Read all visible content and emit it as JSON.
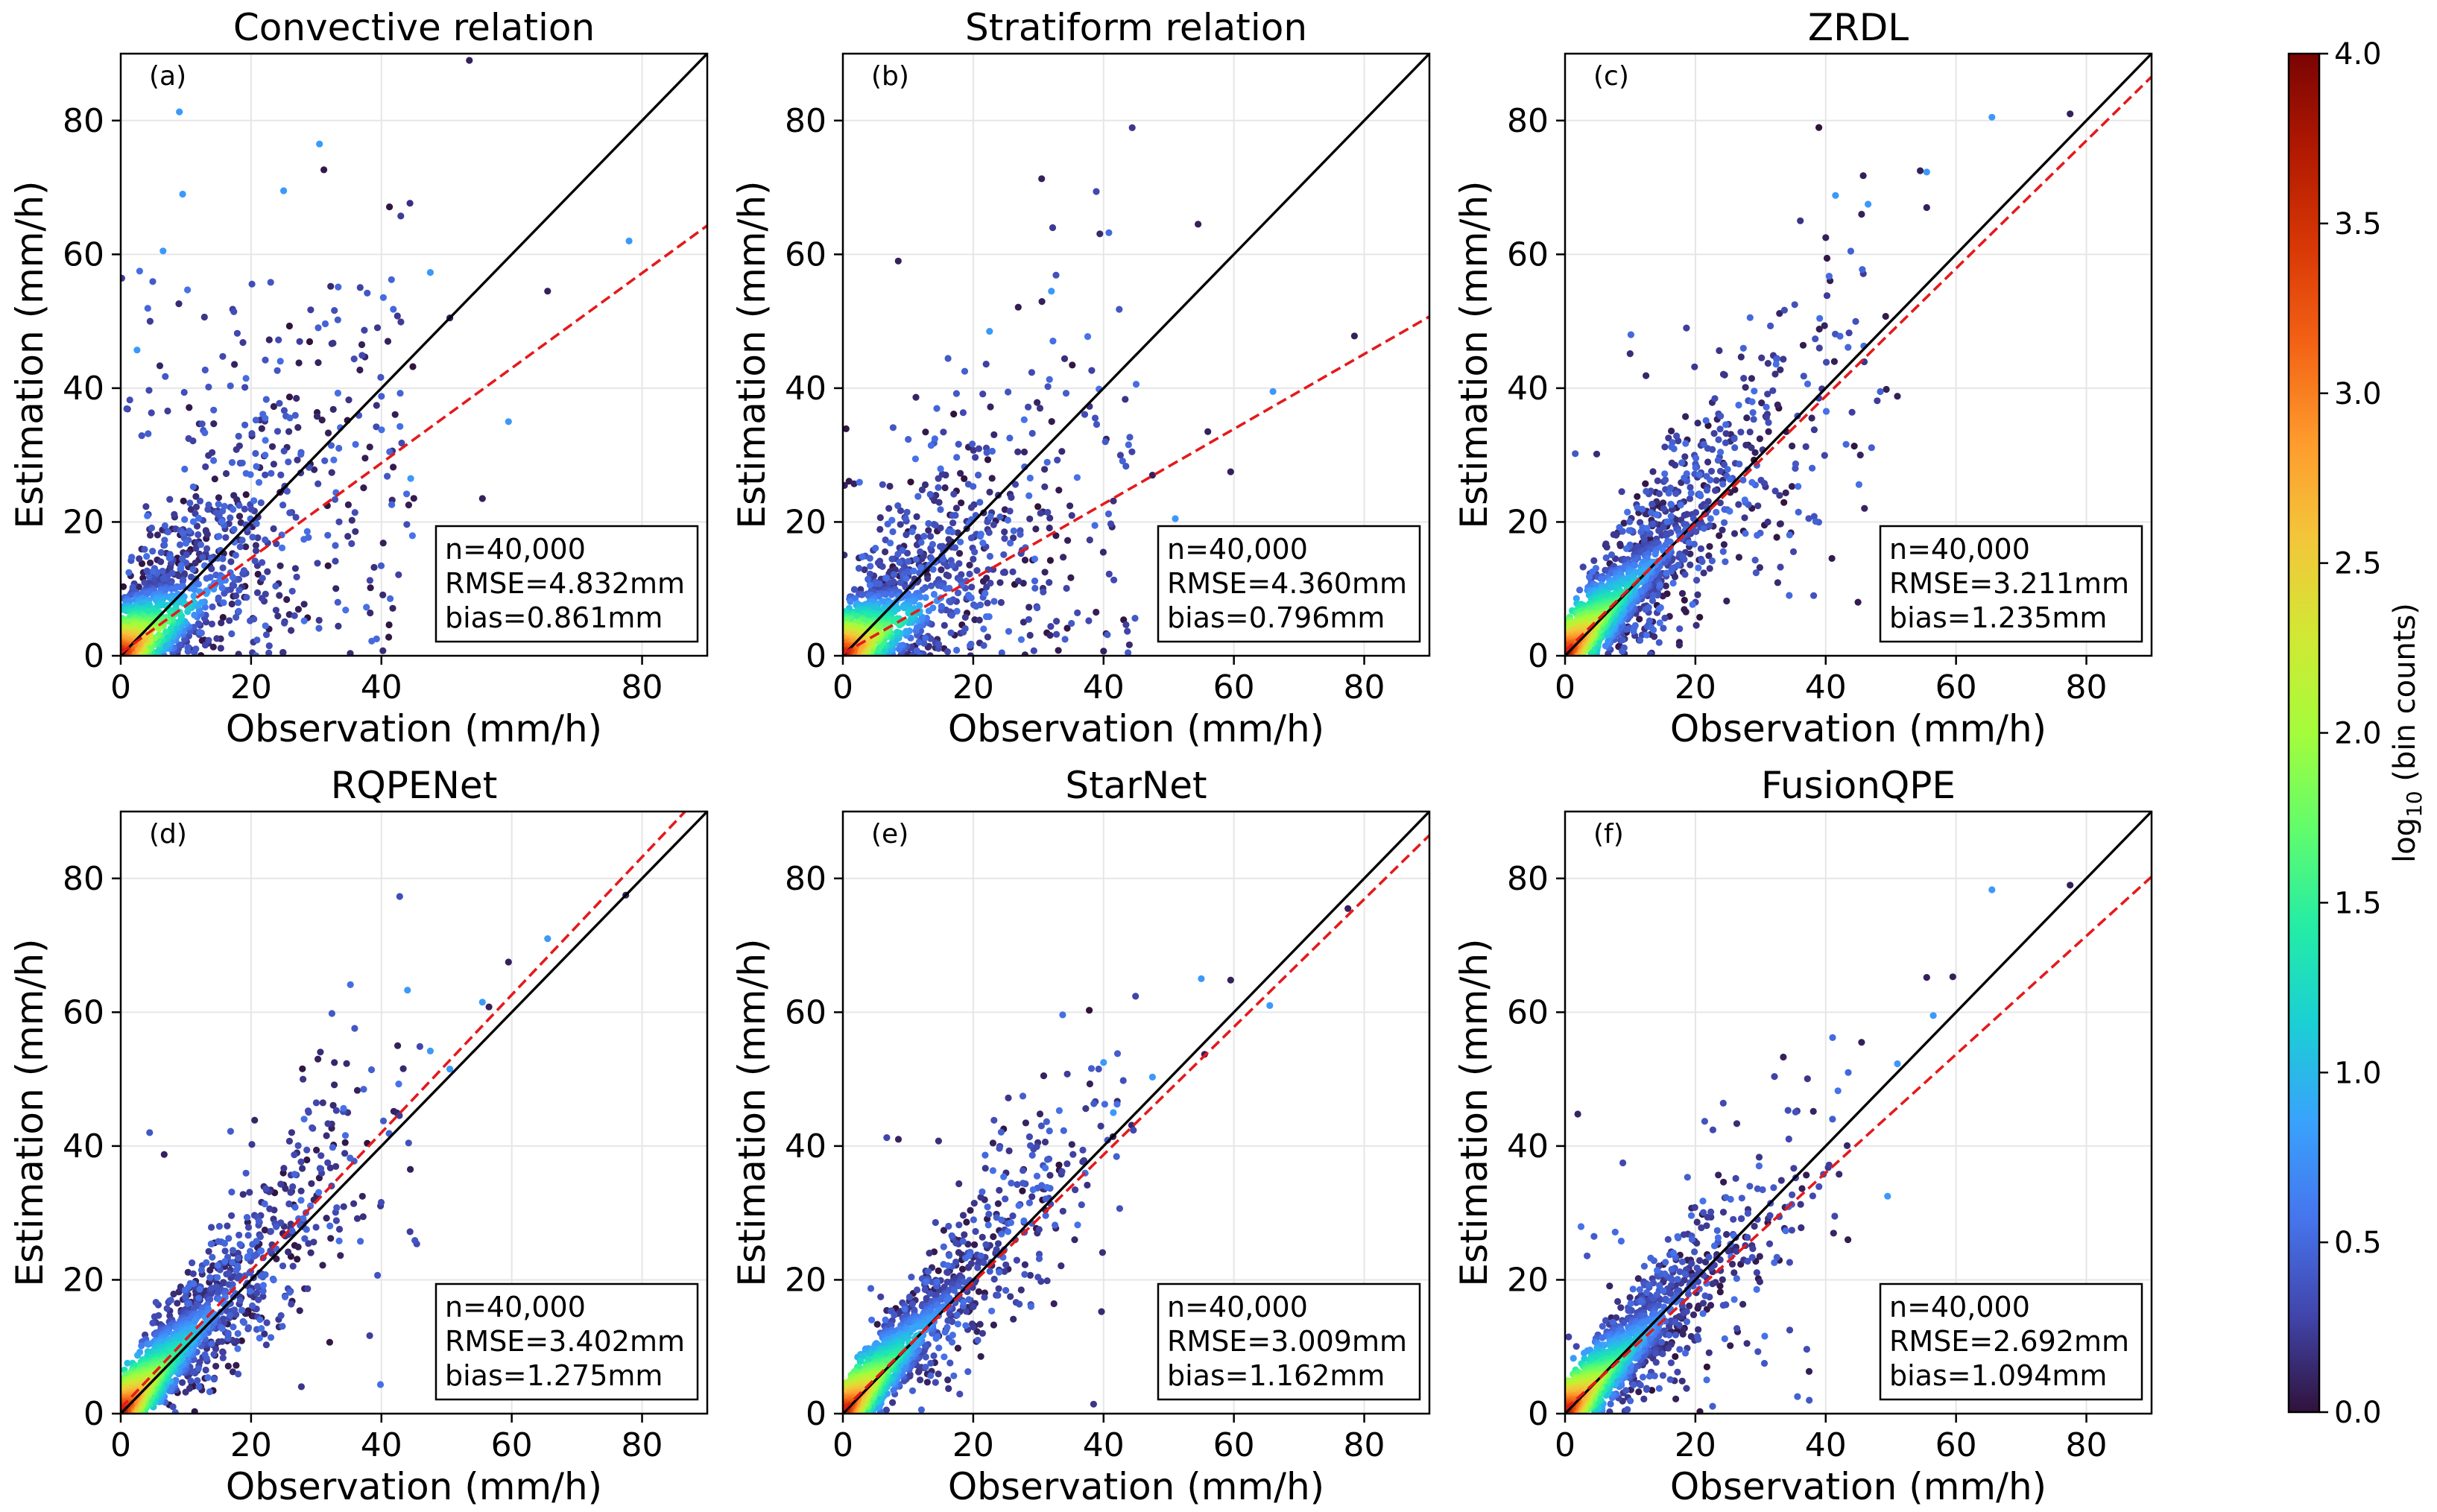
{
  "chart_data": [
    {
      "type": "scatter",
      "panel_label": "(a)",
      "title": "Convective relation",
      "xlabel": "Observation (mm/h)",
      "ylabel": "Estimation (mm/h)",
      "xlim": [
        0,
        90
      ],
      "ylim": [
        0,
        90
      ],
      "xticks": [
        0,
        20,
        40,
        80
      ],
      "yticks": [
        0,
        20,
        40,
        60,
        80
      ],
      "grid": true,
      "color_by": "log10 (bin counts)",
      "identity_line": {
        "color": "#000000",
        "style": "solid"
      },
      "fit_line": {
        "slope": 0.71,
        "intercept": 0.4,
        "color": "#e41a1c",
        "style": "dashed"
      },
      "stats": {
        "n": "n=40,000",
        "rmse": "RMSE=4.832mm",
        "bias": "bias=0.861mm"
      },
      "stats_position": "bottom-right",
      "scatter": {
        "slope": 0.7,
        "intercept": 1.5,
        "spread": 0.55,
        "spread_base": 3.5,
        "obs_max": 45,
        "outlier_frac": 0.1,
        "outlier_ymax": 58,
        "outlier_xmax": 45,
        "count": 1400
      },
      "extreme_points": [
        [
          53.5,
          89
        ],
        [
          9,
          81.3
        ],
        [
          30.5,
          76.5
        ],
        [
          9.5,
          69
        ],
        [
          25,
          69.5
        ],
        [
          6.5,
          60.5
        ],
        [
          78,
          62
        ],
        [
          65.5,
          54.5
        ],
        [
          47.5,
          57.3
        ],
        [
          59.5,
          35
        ],
        [
          55.5,
          23.5
        ],
        [
          50.5,
          50.5
        ],
        [
          44.5,
          26.5
        ],
        [
          37,
          46.5
        ],
        [
          41,
          47
        ],
        [
          2.5,
          45.7
        ]
      ]
    },
    {
      "type": "scatter",
      "panel_label": "(b)",
      "title": "Stratiform relation",
      "xlabel": "Observation (mm/h)",
      "ylabel": "Estimation (mm/h)",
      "xlim": [
        0,
        90
      ],
      "ylim": [
        0,
        90
      ],
      "xticks": [
        0,
        20,
        40,
        60,
        80
      ],
      "yticks": [
        0,
        20,
        40,
        60,
        80
      ],
      "grid": true,
      "color_by": "log10 (bin counts)",
      "identity_line": {
        "color": "#000000",
        "style": "solid"
      },
      "fit_line": {
        "slope": 0.56,
        "intercept": 0.3,
        "color": "#e41a1c",
        "style": "dashed"
      },
      "stats": {
        "n": "n=40,000",
        "rmse": "RMSE=4.360mm",
        "bias": "bias=0.796mm"
      },
      "stats_position": "bottom-right",
      "scatter": {
        "slope": 0.58,
        "intercept": 1.2,
        "spread": 0.5,
        "spread_base": 3.0,
        "obs_max": 45,
        "outlier_frac": 0.08,
        "outlier_ymax": 42,
        "outlier_xmax": 45,
        "count": 1300
      },
      "extreme_points": [
        [
          30.5,
          71.3
        ],
        [
          8.5,
          59
        ],
        [
          54.5,
          64.5
        ],
        [
          78.5,
          47.8
        ],
        [
          32,
          54.5
        ],
        [
          66,
          39.5
        ],
        [
          59.5,
          27.5
        ],
        [
          56,
          33.5
        ],
        [
          47.5,
          27
        ],
        [
          51,
          20.5
        ],
        [
          40,
          0.7
        ],
        [
          22.5,
          48.5
        ]
      ]
    },
    {
      "type": "scatter",
      "panel_label": "(c)",
      "title": "ZRDL",
      "xlabel": "Observation (mm/h)",
      "ylabel": "Estimation (mm/h)",
      "xlim": [
        0,
        90
      ],
      "ylim": [
        0,
        90
      ],
      "xticks": [
        0,
        20,
        40,
        60,
        80
      ],
      "yticks": [
        0,
        20,
        40,
        60,
        80
      ],
      "grid": true,
      "color_by": "log10 (bin counts)",
      "identity_line": {
        "color": "#000000",
        "style": "solid"
      },
      "fit_line": {
        "slope": 0.955,
        "intercept": 0.6,
        "color": "#e41a1c",
        "style": "dashed"
      },
      "stats": {
        "n": "n=40,000",
        "rmse": "RMSE=3.211mm",
        "bias": "bias=1.235mm"
      },
      "stats_position": "bottom-right",
      "scatter": {
        "slope": 1.02,
        "intercept": 1.2,
        "spread": 0.26,
        "spread_base": 2.0,
        "obs_max": 50,
        "outlier_frac": 0.02,
        "outlier_ymax": 50,
        "outlier_xmax": 45,
        "count": 1500
      },
      "extreme_points": [
        [
          65.5,
          80.5
        ],
        [
          77.5,
          81
        ],
        [
          54.5,
          72.5
        ],
        [
          55.5,
          72.3
        ],
        [
          46.5,
          67.5
        ],
        [
          45.5,
          66
        ],
        [
          55.5,
          67
        ],
        [
          41.5,
          68.8
        ],
        [
          51,
          38.8
        ],
        [
          40,
          62.5
        ]
      ]
    },
    {
      "type": "scatter",
      "panel_label": "(d)",
      "title": "RQPENet",
      "xlabel": "Observation (mm/h)",
      "ylabel": "Estimation (mm/h)",
      "xlim": [
        0,
        90
      ],
      "ylim": [
        0,
        90
      ],
      "xticks": [
        0,
        20,
        40,
        60,
        80
      ],
      "yticks": [
        0,
        20,
        40,
        60,
        80
      ],
      "grid": true,
      "color_by": "log10 (bin counts)",
      "identity_line": {
        "color": "#000000",
        "style": "solid"
      },
      "fit_line": {
        "slope": 1.03,
        "intercept": 0.8,
        "color": "#e41a1c",
        "style": "dashed"
      },
      "stats": {
        "n": "n=40,000",
        "rmse": "RMSE=3.402mm",
        "bias": "bias=1.275mm"
      },
      "stats_position": "bottom-right",
      "scatter": {
        "slope": 1.06,
        "intercept": 1.0,
        "spread": 0.24,
        "spread_base": 1.8,
        "obs_max": 46,
        "outlier_frac": 0.015,
        "outlier_ymax": 45,
        "outlier_xmax": 40,
        "count": 1500
      },
      "extreme_points": [
        [
          77.5,
          77.5
        ],
        [
          65.5,
          71
        ],
        [
          59.5,
          67.5
        ],
        [
          55.5,
          61.5
        ],
        [
          56.5,
          60.8
        ],
        [
          44,
          63.3
        ],
        [
          47.5,
          54.2
        ],
        [
          50.5,
          51.5
        ],
        [
          42.5,
          55
        ]
      ]
    },
    {
      "type": "scatter",
      "panel_label": "(e)",
      "title": "StarNet",
      "xlabel": "Observation (mm/h)",
      "ylabel": "Estimation (mm/h)",
      "xlim": [
        0,
        90
      ],
      "ylim": [
        0,
        90
      ],
      "xticks": [
        0,
        20,
        40,
        60,
        80
      ],
      "yticks": [
        0,
        20,
        40,
        60,
        80
      ],
      "grid": true,
      "color_by": "log10 (bin counts)",
      "identity_line": {
        "color": "#000000",
        "style": "solid"
      },
      "fit_line": {
        "slope": 0.955,
        "intercept": 0.5,
        "color": "#e41a1c",
        "style": "dashed"
      },
      "stats": {
        "n": "n=40,000",
        "rmse": "RMSE=3.009mm",
        "bias": "bias=1.162mm"
      },
      "stats_position": "bottom-right",
      "scatter": {
        "slope": 1.04,
        "intercept": 0.9,
        "spread": 0.22,
        "spread_base": 1.6,
        "obs_max": 45,
        "outlier_frac": 0.01,
        "outlier_ymax": 45,
        "outlier_xmax": 40,
        "count": 1400
      },
      "extreme_points": [
        [
          77.5,
          75.5
        ],
        [
          55,
          65
        ],
        [
          59.5,
          64.8
        ],
        [
          65.5,
          61
        ],
        [
          47.5,
          50.3
        ],
        [
          40,
          52.5
        ],
        [
          41.5,
          45
        ],
        [
          55.5,
          53.7
        ]
      ]
    },
    {
      "type": "scatter",
      "panel_label": "(f)",
      "title": "FusionQPE",
      "xlabel": "Observation (mm/h)",
      "ylabel": "Estimation (mm/h)",
      "xlim": [
        0,
        90
      ],
      "ylim": [
        0,
        90
      ],
      "xticks": [
        0,
        20,
        40,
        60,
        80
      ],
      "yticks": [
        0,
        20,
        40,
        60,
        80
      ],
      "grid": true,
      "color_by": "log10 (bin counts)",
      "identity_line": {
        "color": "#000000",
        "style": "solid"
      },
      "fit_line": {
        "slope": 0.885,
        "intercept": 0.6,
        "color": "#e41a1c",
        "style": "dashed"
      },
      "stats": {
        "n": "n=40,000",
        "rmse": "RMSE=2.692mm",
        "bias": "bias=1.094mm"
      },
      "stats_position": "bottom-right",
      "scatter": {
        "slope": 0.98,
        "intercept": 0.9,
        "spread": 0.22,
        "spread_base": 1.6,
        "obs_max": 44,
        "outlier_frac": 0.015,
        "outlier_ymax": 45,
        "outlier_xmax": 40,
        "count": 1400
      },
      "extreme_points": [
        [
          65.5,
          78.3
        ],
        [
          77.5,
          79
        ],
        [
          59.5,
          65.3
        ],
        [
          55.5,
          65.2
        ],
        [
          56.5,
          59.5
        ],
        [
          45.5,
          55.5
        ],
        [
          33.5,
          53.3
        ],
        [
          49.5,
          32.5
        ],
        [
          51,
          52.3
        ]
      ]
    }
  ],
  "colorbar": {
    "label": "log10 (bin counts)",
    "min": 0.0,
    "max": 4.0,
    "ticks": [
      "0.0",
      "0.5",
      "1.0",
      "1.5",
      "2.0",
      "2.5",
      "3.0",
      "3.5",
      "4.0"
    ],
    "colormap_stops": [
      "#30123b",
      "#4145ab",
      "#4675ed",
      "#39a2fc",
      "#1bcfd4",
      "#24eca6",
      "#61fc6c",
      "#a4fc3b",
      "#d1e834",
      "#f3c63a",
      "#fe9b2d",
      "#f36315",
      "#d93806",
      "#b11901",
      "#7a0403"
    ]
  }
}
